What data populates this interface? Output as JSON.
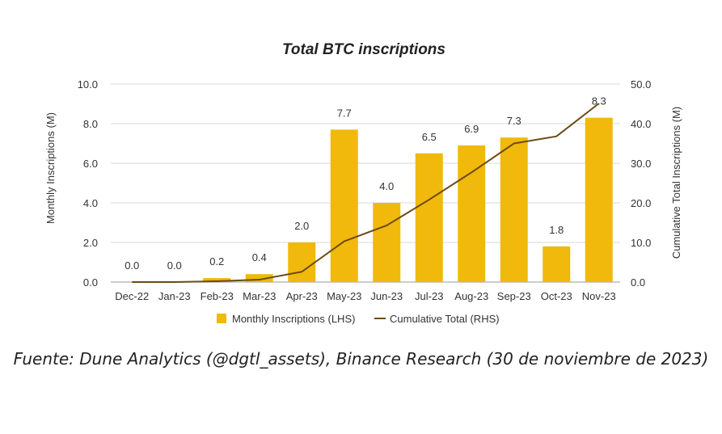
{
  "chart_data": {
    "type": "bar+line",
    "title": "Total BTC inscriptions",
    "categories": [
      "Dec-22",
      "Jan-23",
      "Feb-23",
      "Mar-23",
      "Apr-23",
      "May-23",
      "Jun-23",
      "Jul-23",
      "Aug-23",
      "Sep-23",
      "Oct-23",
      "Nov-23"
    ],
    "series": [
      {
        "name": "Monthly Inscriptions (LHS)",
        "type": "bar",
        "axis": "left",
        "color": "#f0b90b",
        "values": [
          0.0,
          0.0,
          0.2,
          0.4,
          2.0,
          7.7,
          4.0,
          6.5,
          6.9,
          7.3,
          1.8,
          8.3
        ],
        "labels": [
          "0.0",
          "0.0",
          "0.2",
          "0.4",
          "2.0",
          "7.7",
          "4.0",
          "6.5",
          "6.9",
          "7.3",
          "1.8",
          "8.3"
        ]
      },
      {
        "name": "Cumulative Total (RHS)",
        "type": "line",
        "axis": "right",
        "color": "#6b4a12",
        "values": [
          0.0,
          0.0,
          0.2,
          0.6,
          2.6,
          10.3,
          14.3,
          20.8,
          27.7,
          35.0,
          36.8,
          45.1
        ]
      }
    ],
    "ylabel_left": "Monthly Inscriptions (M)",
    "ylabel_right": "Cumulative Total Inscriptions (M)",
    "ylim_left": [
      0,
      10
    ],
    "ylim_right": [
      0,
      50
    ],
    "yticks_left": [
      "0.0",
      "2.0",
      "4.0",
      "6.0",
      "8.0",
      "10.0"
    ],
    "yticks_right": [
      "0.0",
      "10.0",
      "20.0",
      "30.0",
      "40.0",
      "50.0"
    ],
    "grid": true,
    "legend_position": "bottom"
  },
  "caption": "Fuente: Dune Analytics (@dgtl_assets), Binance Research (30 de noviembre de 2023)"
}
